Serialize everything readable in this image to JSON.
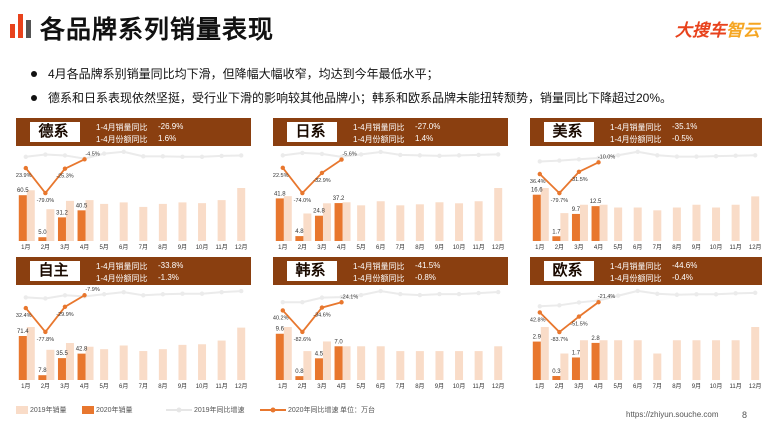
{
  "page_title": "各品牌系列销量表现",
  "logo": {
    "part1": "大搜车",
    "part2": "智云"
  },
  "bullets": [
    "4月各品牌系别销量同比均下滑，但降幅大幅收窄，均达到今年最低水平；",
    "德系和日系表现依然坚挺，受行业下滑的影响较其他品牌小；韩系和欧系品牌未能扭转颓势，销量同比下降超过20%。"
  ],
  "stat_labels": {
    "sales_yoy": "1-4月销量同比",
    "share_yoy": "1-4月份额同比"
  },
  "colors": {
    "header": "#8a3f10",
    "bar2019": "#f9dcc8",
    "bar2020": "#e8772e",
    "line2019": "#ebebeb",
    "line2020": "#e8772e"
  },
  "chart_data": [
    {
      "type": "bar+line",
      "name": "德系",
      "sales_yoy": "-26.9%",
      "share_yoy": "1.6%",
      "categories": [
        "1月",
        "2月",
        "3月",
        "4月",
        "5月",
        "6月",
        "7月",
        "8月",
        "9月",
        "10月",
        "11月",
        "12月"
      ],
      "bars_2020": [
        60.5,
        5.0,
        31.2,
        40.5
      ],
      "bars_2020_labels": [
        "60.5",
        "5.0",
        "31.2",
        "40.5"
      ],
      "bars_2019": [
        67,
        42,
        53,
        54,
        49,
        51,
        45,
        49,
        51,
        50,
        54,
        70
      ],
      "growth_2020": [
        -23.9,
        -79.0,
        -25.3,
        -4.5
      ],
      "growth_2020_labels": [
        "-23.9%",
        "-79.0%",
        "-25.3%",
        "-4.5%"
      ],
      "growth_2019": [
        1,
        6,
        4,
        -3,
        8,
        12,
        2,
        2,
        1,
        1,
        3,
        4
      ],
      "unit": "万台"
    },
    {
      "type": "bar+line",
      "name": "日系",
      "sales_yoy": "-27.0%",
      "share_yoy": "1.4%",
      "categories": [
        "1月",
        "2月",
        "3月",
        "4月",
        "5月",
        "6月",
        "7月",
        "8月",
        "9月",
        "10月",
        "11月",
        "12月"
      ],
      "bars_2020": [
        41.8,
        4.8,
        24.8,
        37.2
      ],
      "bars_2020_labels": [
        "41.8",
        "4.8",
        "24.8",
        "37.2"
      ],
      "bars_2019": [
        44,
        27,
        37,
        38,
        35,
        39,
        35,
        36,
        38,
        37,
        39,
        52
      ],
      "growth_2020": [
        -22.5,
        -74.0,
        -32.9,
        -5.6
      ],
      "growth_2020_labels": [
        "-22.5%",
        "-74.0%",
        "-32.9%",
        "-5.6%"
      ],
      "growth_2019": [
        3,
        8,
        6,
        0,
        5,
        10,
        4,
        3,
        2,
        3,
        4,
        5
      ],
      "unit": "万台"
    },
    {
      "type": "bar+line",
      "name": "美系",
      "sales_yoy": "-35.1%",
      "share_yoy": "-0.5%",
      "categories": [
        "1月",
        "2月",
        "3月",
        "4月",
        "5月",
        "6月",
        "7月",
        "8月",
        "9月",
        "10月",
        "11月",
        "12月"
      ],
      "bars_2020": [
        16.6,
        1.7,
        9.7,
        12.5
      ],
      "bars_2020_labels": [
        "16.6",
        "1.7",
        "9.7",
        "12.5"
      ],
      "bars_2019": [
        19,
        10,
        13,
        13,
        12,
        12,
        11,
        12,
        13,
        12,
        13,
        16
      ],
      "growth_2020": [
        -36.4,
        -79.7,
        -31.5,
        -10.0
      ],
      "growth_2020_labels": [
        "-36.4%",
        "-79.7%",
        "-31.5%",
        "-10.0%"
      ],
      "growth_2019": [
        -8,
        -6,
        -3,
        0,
        6,
        14,
        6,
        3,
        3,
        4,
        5,
        6
      ],
      "unit": "万台"
    },
    {
      "type": "bar+line",
      "name": "自主",
      "sales_yoy": "-33.8%",
      "share_yoy": "-1.3%",
      "categories": [
        "1月",
        "2月",
        "3月",
        "4月",
        "5月",
        "6月",
        "7月",
        "8月",
        "9月",
        "10月",
        "11月",
        "12月"
      ],
      "bars_2020": [
        71.4,
        7.8,
        35.5,
        42.8
      ],
      "bars_2020_labels": [
        "71.4",
        "7.8",
        "35.5",
        "42.8"
      ],
      "bars_2019": [
        86,
        49,
        60,
        54,
        50,
        56,
        47,
        50,
        57,
        58,
        64,
        85
      ],
      "growth_2020": [
        -32.4,
        -77.8,
        -29.9,
        -7.9
      ],
      "growth_2020_labels": [
        "-32.4%",
        "-77.8%",
        "-29.9%",
        "-7.9%"
      ],
      "growth_2019": [
        -12,
        -14,
        -8,
        -10,
        -6,
        -2,
        -8,
        -6,
        -5,
        -5,
        -2,
        0
      ],
      "unit": "万台"
    },
    {
      "type": "bar+line",
      "name": "韩系",
      "sales_yoy": "-41.5%",
      "share_yoy": "-0.8%",
      "categories": [
        "1月",
        "2月",
        "3月",
        "4月",
        "5月",
        "6月",
        "7月",
        "8月",
        "9月",
        "10月",
        "11月",
        "12月"
      ],
      "bars_2020": [
        9.6,
        0.8,
        4.5,
        7.0
      ],
      "bars_2020_labels": [
        "9.6",
        "0.8",
        "4.5",
        "7.0"
      ],
      "bars_2019": [
        11,
        6,
        8,
        7,
        7,
        7,
        6,
        6,
        6,
        6,
        6,
        7
      ],
      "growth_2020": [
        -40.2,
        -82.6,
        -34.6,
        -24.1
      ],
      "growth_2020_labels": [
        "-40.2%",
        "-82.6%",
        "-34.6%",
        "-24.1%"
      ],
      "growth_2019": [
        -24,
        -24,
        -15,
        -14,
        -10,
        -2,
        -8,
        -10,
        -8,
        -8,
        -6,
        -4
      ],
      "unit": "万台"
    },
    {
      "type": "bar+line",
      "name": "欧系",
      "sales_yoy": "-44.6%",
      "share_yoy": "-0.4%",
      "categories": [
        "1月",
        "2月",
        "3月",
        "4月",
        "5月",
        "6月",
        "7月",
        "8月",
        "9月",
        "10月",
        "11月",
        "12月"
      ],
      "bars_2020": [
        2.9,
        0.3,
        1.7,
        2.8
      ],
      "bars_2020_labels": [
        "2.9",
        "0.3",
        "1.7",
        "2.8"
      ],
      "bars_2019": [
        4,
        2,
        3,
        3,
        3,
        3,
        2,
        3,
        3,
        3,
        3,
        4
      ],
      "growth_2020": [
        -42.8,
        -83.7,
        -51.5,
        -21.4
      ],
      "growth_2020_labels": [
        "-42.8%",
        "-83.7%",
        "-51.5%",
        "-21.4%"
      ],
      "growth_2019": [
        -30,
        -28,
        -22,
        -18,
        -8,
        2,
        -4,
        -6,
        -5,
        -5,
        -3,
        -2
      ],
      "unit": "万台"
    }
  ],
  "legend": {
    "bar2019": "2019年销量",
    "bar2020": "2020年销量",
    "line2019": "2019年同比增速",
    "line2020": "2020年同比增速",
    "unit": "单位：万台"
  },
  "footer": {
    "url": "https://zhiyun.souche.com",
    "page": "8"
  }
}
